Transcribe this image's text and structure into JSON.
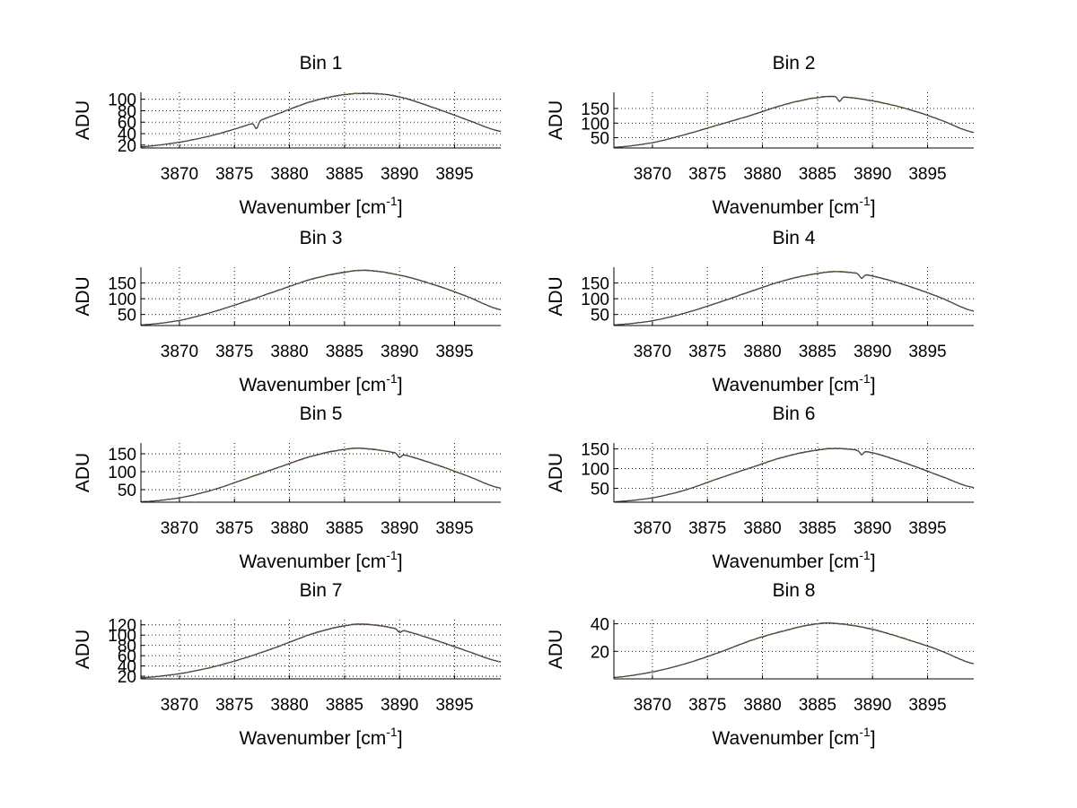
{
  "figure": {
    "xlabel_main": "Wavenumber [cm",
    "xlabel_exp": "-1",
    "xlabel_close": "]",
    "ylabel": "ADU"
  },
  "colors": {
    "series": [
      "#0000ff",
      "#00aa00",
      "#ff0000",
      "#00bfbf",
      "#bf00bf",
      "#bfbf00",
      "#404040"
    ]
  },
  "chart_data": [
    {
      "type": "line",
      "title": "Bin 1",
      "xlabel": "Wavenumber [cm-1]",
      "ylabel": "ADU",
      "xlim": [
        3866.5,
        3899.2
      ],
      "ylim": [
        15,
        112
      ],
      "xticks": [
        3870,
        3875,
        3880,
        3885,
        3890,
        3895
      ],
      "yticks": [
        20,
        40,
        60,
        80,
        100
      ],
      "ytick_labels": [
        "20",
        "40",
        "60",
        "80",
        "100"
      ],
      "grid": true,
      "x": [
        3866.5,
        3870,
        3873,
        3876,
        3879,
        3882,
        3885,
        3887.5,
        3890,
        3893,
        3896,
        3899.2
      ],
      "values": [
        17,
        25,
        37,
        54,
        75,
        96,
        108,
        110,
        104,
        86,
        65,
        44
      ],
      "features": [
        {
          "x": 3877,
          "depth": 12
        }
      ]
    },
    {
      "type": "line",
      "title": "Bin 2",
      "xlabel": "Wavenumber [cm-1]",
      "ylabel": "ADU",
      "xlim": [
        3866.5,
        3899.2
      ],
      "ylim": [
        15,
        205
      ],
      "xticks": [
        3870,
        3875,
        3880,
        3885,
        3890,
        3895
      ],
      "yticks": [
        50,
        100,
        150
      ],
      "ytick_labels": [
        "50",
        "100",
        "150"
      ],
      "grid": true,
      "x": [
        3866.5,
        3870,
        3873,
        3876,
        3879,
        3882,
        3885,
        3887,
        3890,
        3893,
        3896,
        3899.2
      ],
      "values": [
        17,
        33,
        61,
        94,
        127,
        163,
        187,
        190,
        176,
        150,
        113,
        68
      ],
      "features": [
        {
          "x": 3887,
          "depth": 16
        }
      ]
    },
    {
      "type": "line",
      "title": "Bin 3",
      "xlabel": "Wavenumber [cm-1]",
      "ylabel": "ADU",
      "xlim": [
        3866.5,
        3899.2
      ],
      "ylim": [
        15,
        200
      ],
      "xticks": [
        3870,
        3875,
        3880,
        3885,
        3890,
        3895
      ],
      "yticks": [
        50,
        100,
        150
      ],
      "ytick_labels": [
        "50",
        "100",
        "150"
      ],
      "grid": true,
      "x": [
        3866.5,
        3870,
        3873,
        3876,
        3879,
        3882,
        3885,
        3887,
        3890,
        3893,
        3896,
        3899.2
      ],
      "values": [
        17,
        31,
        58,
        91,
        127,
        162,
        184,
        190,
        175,
        146,
        109,
        65
      ],
      "features": []
    },
    {
      "type": "line",
      "title": "Bin 4",
      "xlabel": "Wavenumber [cm-1]",
      "ylabel": "ADU",
      "xlim": [
        3866.5,
        3899.2
      ],
      "ylim": [
        15,
        200
      ],
      "xticks": [
        3870,
        3875,
        3880,
        3885,
        3890,
        3895
      ],
      "yticks": [
        50,
        100,
        150
      ],
      "ytick_labels": [
        "50",
        "100",
        "150"
      ],
      "grid": true,
      "x": [
        3866.5,
        3870,
        3873,
        3876,
        3879,
        3882,
        3885,
        3887,
        3890,
        3893,
        3896,
        3899.2
      ],
      "values": [
        17,
        30,
        55,
        88,
        124,
        158,
        180,
        186,
        172,
        143,
        106,
        61
      ],
      "features": [
        {
          "x": 3889,
          "depth": 14
        }
      ]
    },
    {
      "type": "line",
      "title": "Bin 5",
      "xlabel": "Wavenumber [cm-1]",
      "ylabel": "ADU",
      "xlim": [
        3866.5,
        3899.2
      ],
      "ylim": [
        15,
        180
      ],
      "xticks": [
        3870,
        3875,
        3880,
        3885,
        3890,
        3895
      ],
      "yticks": [
        50,
        100,
        150
      ],
      "ytick_labels": [
        "50",
        "100",
        "150"
      ],
      "grid": true,
      "x": [
        3866.5,
        3870,
        3873,
        3876,
        3879,
        3882,
        3885,
        3887,
        3890,
        3893,
        3896,
        3899.2
      ],
      "values": [
        16,
        27,
        49,
        80,
        112,
        143,
        162,
        164,
        150,
        123,
        90,
        54
      ],
      "features": [
        {
          "x": 3890,
          "depth": 10
        }
      ]
    },
    {
      "type": "line",
      "title": "Bin 6",
      "xlabel": "Wavenumber [cm-1]",
      "ylabel": "ADU",
      "xlim": [
        3866.5,
        3899.2
      ],
      "ylim": [
        15,
        165
      ],
      "xticks": [
        3870,
        3875,
        3880,
        3885,
        3890,
        3895
      ],
      "yticks": [
        50,
        100,
        150
      ],
      "ytick_labels": [
        "50",
        "100",
        "150"
      ],
      "grid": true,
      "x": [
        3866.5,
        3870,
        3873,
        3876,
        3879,
        3882,
        3885,
        3887,
        3890,
        3893,
        3896,
        3899.2
      ],
      "values": [
        16,
        26,
        46,
        75,
        103,
        130,
        147,
        151,
        140,
        114,
        83,
        52
      ],
      "features": [
        {
          "x": 3889,
          "depth": 10
        }
      ]
    },
    {
      "type": "line",
      "title": "Bin 7",
      "xlabel": "Wavenumber [cm-1]",
      "ylabel": "ADU",
      "xlim": [
        3866.5,
        3899.2
      ],
      "ylim": [
        15,
        130
      ],
      "xticks": [
        3870,
        3875,
        3880,
        3885,
        3890,
        3895
      ],
      "yticks": [
        20,
        40,
        60,
        80,
        100,
        120
      ],
      "ytick_labels": [
        "20",
        "40",
        "60",
        "80",
        "100",
        "120"
      ],
      "grid": true,
      "x": [
        3866.5,
        3870,
        3873,
        3876,
        3879,
        3882,
        3885,
        3887,
        3890,
        3893,
        3896,
        3899.2
      ],
      "values": [
        17,
        25,
        38,
        56,
        78,
        102,
        118,
        121,
        111,
        92,
        70,
        48
      ],
      "features": [
        {
          "x": 3890,
          "depth": 6
        }
      ]
    },
    {
      "type": "line",
      "title": "Bin 8",
      "xlabel": "Wavenumber [cm-1]",
      "ylabel": "ADU",
      "xlim": [
        3866.5,
        3899.2
      ],
      "ylim": [
        0,
        43
      ],
      "xticks": [
        3870,
        3875,
        3880,
        3885,
        3890,
        3895
      ],
      "yticks": [
        20,
        40
      ],
      "ytick_labels": [
        "20",
        "40"
      ],
      "grid": true,
      "x": [
        3866.5,
        3870,
        3873,
        3876,
        3879,
        3882,
        3885,
        3887,
        3890,
        3893,
        3896,
        3899.2
      ],
      "values": [
        1,
        5,
        11,
        19,
        28,
        35,
        40,
        40,
        36,
        29,
        21,
        11
      ],
      "features": []
    }
  ]
}
